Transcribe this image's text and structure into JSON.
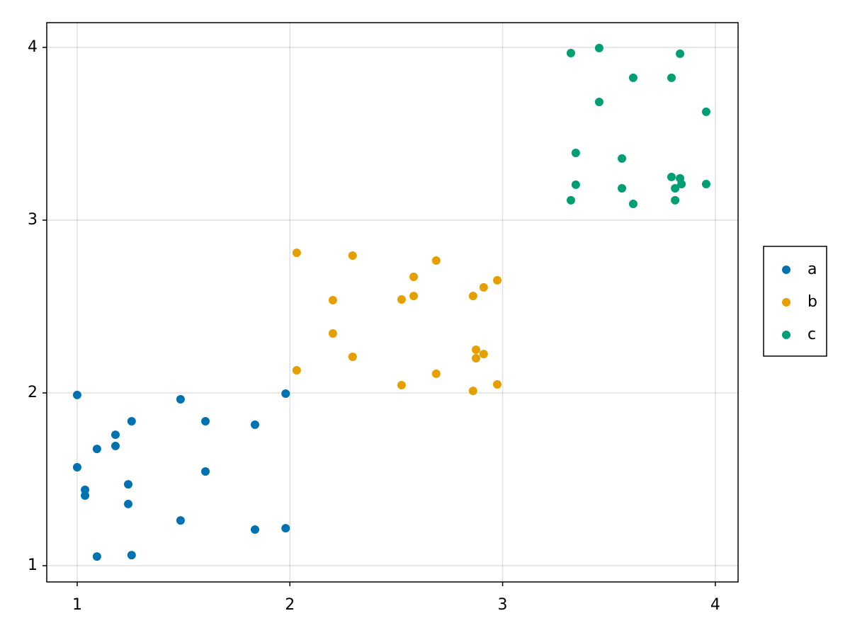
{
  "chart_data": {
    "type": "scatter",
    "xlim": [
      0.857,
      4.107
    ],
    "xticks": [
      1,
      2,
      3,
      4
    ],
    "ylim": [
      0.906,
      4.143
    ],
    "yticks": [
      1,
      2,
      3,
      4
    ],
    "grid": true,
    "legend": "right",
    "series": [
      {
        "name": "a",
        "color": "#0072b2",
        "x": [
          1.0,
          1.0,
          1.037,
          1.037,
          1.093,
          1.093,
          1.18,
          1.18,
          1.24,
          1.24,
          1.256,
          1.256,
          1.486,
          1.486,
          1.603,
          1.603,
          1.836,
          1.836,
          1.98,
          1.98
        ],
        "values": [
          1.988,
          1.57,
          1.439,
          1.406,
          1.676,
          1.053,
          1.758,
          1.693,
          1.471,
          1.357,
          1.836,
          1.061,
          1.963,
          1.262,
          1.836,
          1.545,
          1.816,
          1.209,
          1.996,
          1.217
        ]
      },
      {
        "name": "b",
        "color": "#e69f00",
        "x": [
          2.032,
          2.032,
          2.202,
          2.202,
          2.295,
          2.295,
          2.525,
          2.525,
          2.582,
          2.582,
          2.688,
          2.688,
          2.861,
          2.861,
          2.875,
          2.875,
          2.911,
          2.911,
          2.975,
          2.975
        ],
        "values": [
          2.811,
          2.131,
          2.537,
          2.344,
          2.795,
          2.209,
          2.541,
          2.045,
          2.672,
          2.561,
          2.766,
          2.111,
          2.561,
          2.012,
          2.25,
          2.201,
          2.611,
          2.225,
          2.652,
          2.049
        ]
      },
      {
        "name": "c",
        "color": "#009e73",
        "x": [
          3.321,
          3.321,
          3.344,
          3.344,
          3.454,
          3.454,
          3.561,
          3.561,
          3.614,
          3.614,
          3.794,
          3.794,
          3.811,
          3.811,
          3.834,
          3.834,
          3.841,
          3.957,
          3.957
        ],
        "values": [
          3.967,
          3.115,
          3.389,
          3.205,
          3.996,
          3.684,
          3.357,
          3.184,
          3.824,
          3.094,
          3.824,
          3.25,
          3.184,
          3.115,
          3.963,
          3.242,
          3.209,
          3.627,
          3.209
        ]
      }
    ]
  }
}
